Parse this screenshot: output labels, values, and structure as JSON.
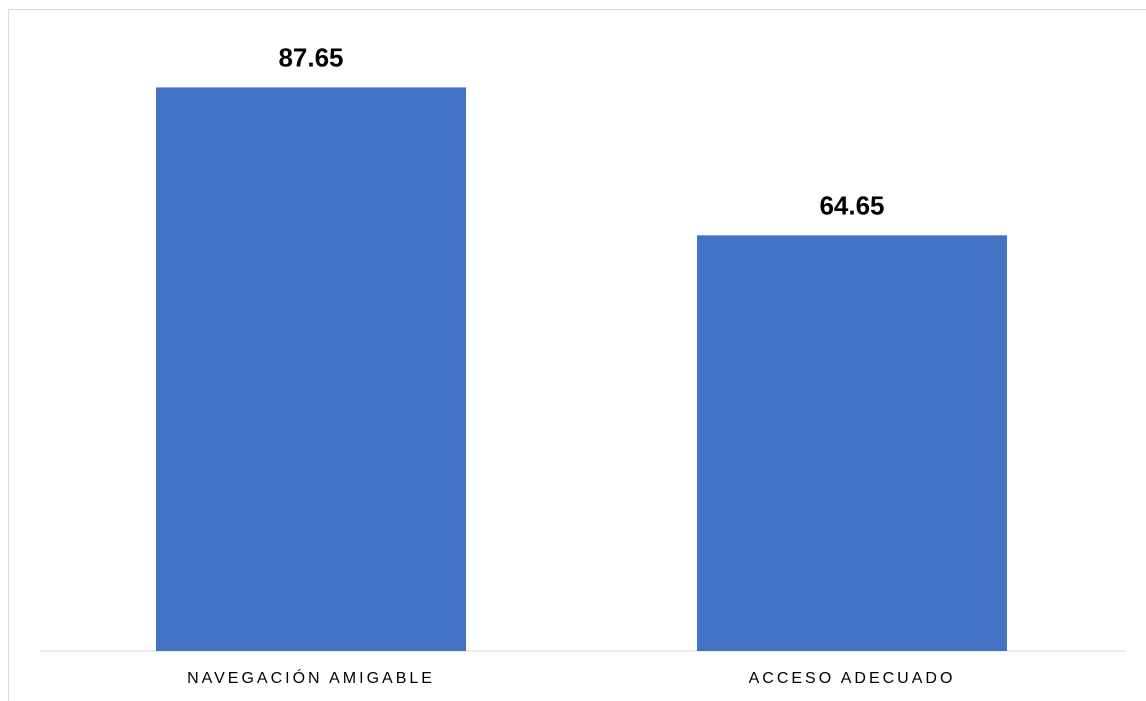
{
  "chart_data": {
    "type": "bar",
    "categories": [
      "NAVEGACIÓN AMIGABLE",
      "ACCESO ADECUADO"
    ],
    "values": [
      87.65,
      64.65
    ],
    "value_labels": [
      "87.65",
      "64.65"
    ],
    "title": "",
    "xlabel": "",
    "ylabel": "",
    "ylim": [
      0,
      100
    ],
    "grid": false,
    "legend": "none",
    "bar_color": "#4472C4"
  }
}
